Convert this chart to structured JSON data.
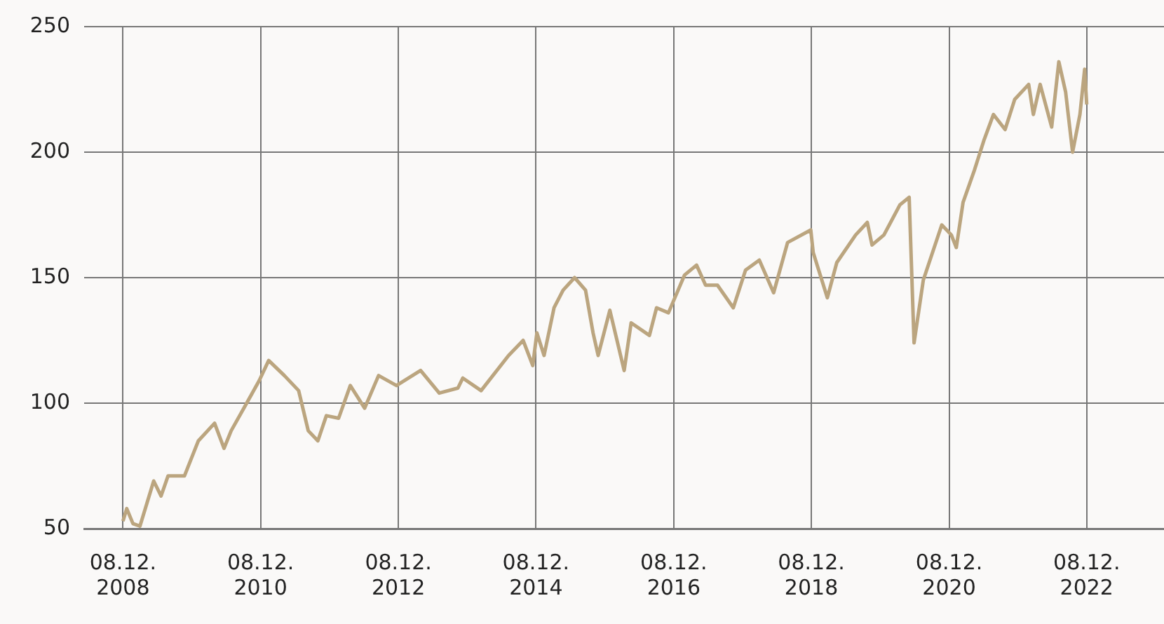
{
  "chart_data": {
    "type": "line",
    "x": [
      "2008-12-08",
      "2008-12-28",
      "2009-01-30",
      "2009-03-08",
      "2009-05-20",
      "2009-06-28",
      "2009-08-04",
      "2009-10-30",
      "2010-01-12",
      "2010-04-08",
      "2010-05-28",
      "2010-07-05",
      "2010-09-18",
      "2010-12-01",
      "2011-01-20",
      "2011-04-13",
      "2011-06-28",
      "2011-08-18",
      "2011-10-08",
      "2011-11-22",
      "2012-01-26",
      "2012-03-28",
      "2012-06-12",
      "2012-08-25",
      "2012-11-28",
      "2013-04-05",
      "2013-07-13",
      "2013-10-20",
      "2013-11-15",
      "2014-02-20",
      "2014-07-16",
      "2014-10-01",
      "2014-11-21",
      "2014-12-13",
      "2015-01-20",
      "2015-03-14",
      "2015-05-01",
      "2015-07-01",
      "2015-08-28",
      "2015-10-07",
      "2015-11-03",
      "2016-01-04",
      "2016-03-20",
      "2016-04-26",
      "2016-08-01",
      "2016-09-08",
      "2016-11-10",
      "2017-02-03",
      "2017-04-08",
      "2017-05-26",
      "2017-07-28",
      "2017-10-20",
      "2017-12-24",
      "2018-03-07",
      "2018-05-22",
      "2018-08-04",
      "2018-12-05",
      "2018-12-18",
      "2019-03-03",
      "2019-04-22",
      "2019-07-31",
      "2019-10-01",
      "2019-10-26",
      "2019-12-28",
      "2020-03-22",
      "2020-05-10",
      "2020-06-05",
      "2020-07-24",
      "2020-10-30",
      "2020-12-20",
      "2021-01-15",
      "2021-02-20",
      "2021-04-22",
      "2021-06-12",
      "2021-07-31",
      "2021-10-01",
      "2021-11-21",
      "2022-02-03",
      "2022-02-28",
      "2022-04-05",
      "2022-06-05",
      "2022-07-13",
      "2022-08-18",
      "2022-09-24",
      "2022-11-02",
      "2022-11-27",
      "2022-12-08"
    ],
    "series": [
      {
        "color": "#bba57f",
        "values": [
          53,
          58,
          52,
          51,
          69,
          63,
          71,
          71,
          85,
          92,
          82,
          89,
          99,
          109,
          117,
          111,
          105,
          89,
          85,
          95,
          94,
          107,
          98,
          111,
          107,
          113,
          104,
          106,
          110,
          105,
          119,
          125,
          115,
          128,
          119,
          138,
          145,
          150,
          145,
          128,
          119,
          137,
          113,
          132,
          127,
          138,
          136,
          151,
          155,
          147,
          147,
          138,
          153,
          157,
          144,
          164,
          169,
          160,
          142,
          156,
          167,
          172,
          163,
          167,
          179,
          182,
          124,
          149,
          171,
          167,
          162,
          180,
          193,
          205,
          215,
          209,
          221,
          227,
          215,
          227,
          210,
          236,
          224,
          200,
          215,
          233,
          219
        ]
      }
    ],
    "xlim": [
      "2008-05-16",
      "2024-01-22"
    ],
    "xticks": [
      {
        "value": "2008-12-08",
        "label": "08.12. 2008"
      },
      {
        "value": "2010-12-08",
        "label": "08.12. 2010"
      },
      {
        "value": "2012-12-08",
        "label": "08.12. 2012"
      },
      {
        "value": "2014-12-08",
        "label": "08.12. 2014"
      },
      {
        "value": "2016-12-08",
        "label": "08.12. 2016"
      },
      {
        "value": "2018-12-08",
        "label": "08.12. 2018"
      },
      {
        "value": "2020-12-08",
        "label": "08.12. 2020"
      },
      {
        "value": "2022-12-08",
        "label": "08.12. 2022"
      }
    ],
    "ylim": [
      50,
      250
    ],
    "yticks": [
      50,
      100,
      150,
      200,
      250
    ],
    "grid": true,
    "legend": false,
    "marker": "none",
    "line_style": "solid"
  }
}
